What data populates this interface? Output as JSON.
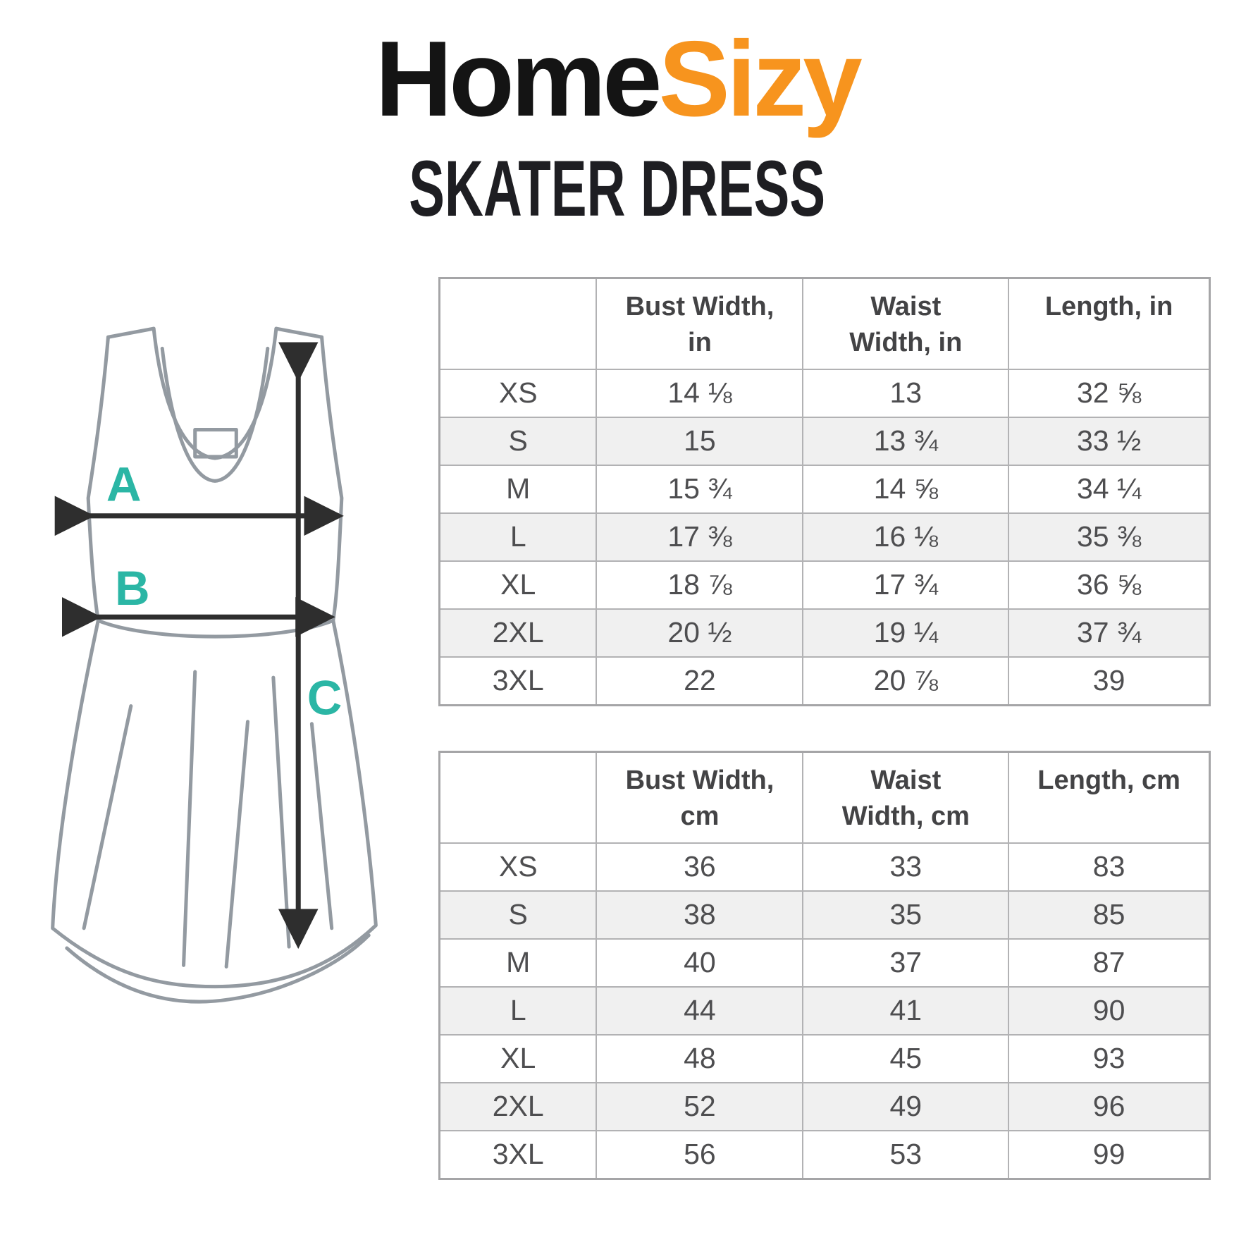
{
  "brand": {
    "logo_black": "Home",
    "logo_orange": "Sizy",
    "subtitle": "SKATER DRESS"
  },
  "diagram": {
    "labels": {
      "bust": "A",
      "waist": "B",
      "length": "C"
    }
  },
  "tables": [
    {
      "id": "inches",
      "headers": [
        "",
        "Bust Width,\nin",
        "Waist\nWidth, in",
        "Length, in"
      ],
      "rows": [
        [
          "XS",
          "14 ⅛",
          "13",
          "32 ⅝"
        ],
        [
          "S",
          "15",
          "13 ¾",
          "33 ½"
        ],
        [
          "M",
          "15 ¾",
          "14 ⅝",
          "34 ¼"
        ],
        [
          "L",
          "17 ⅜",
          "16 ⅛",
          "35 ⅜"
        ],
        [
          "XL",
          "18 ⅞",
          "17 ¾",
          "36 ⅝"
        ],
        [
          "2XL",
          "20 ½",
          "19 ¼",
          "37 ¾"
        ],
        [
          "3XL",
          "22",
          "20 ⅞",
          "39"
        ]
      ]
    },
    {
      "id": "cm",
      "headers": [
        "",
        "Bust Width,\ncm",
        "Waist\nWidth, cm",
        "Length, cm"
      ],
      "rows": [
        [
          "XS",
          "36",
          "33",
          "83"
        ],
        [
          "S",
          "38",
          "35",
          "85"
        ],
        [
          "M",
          "40",
          "37",
          "87"
        ],
        [
          "L",
          "44",
          "41",
          "90"
        ],
        [
          "XL",
          "48",
          "45",
          "93"
        ],
        [
          "2XL",
          "52",
          "49",
          "96"
        ],
        [
          "3XL",
          "56",
          "53",
          "99"
        ]
      ]
    }
  ],
  "colors": {
    "accent_teal": "#2bb6a5",
    "brand_orange": "#f7941e",
    "brand_black": "#141414",
    "table_border": "#b2b2b4",
    "row_stripe": "#f0f0f0",
    "dress_outline": "#939aa1",
    "arrow": "#2e2e2e"
  }
}
